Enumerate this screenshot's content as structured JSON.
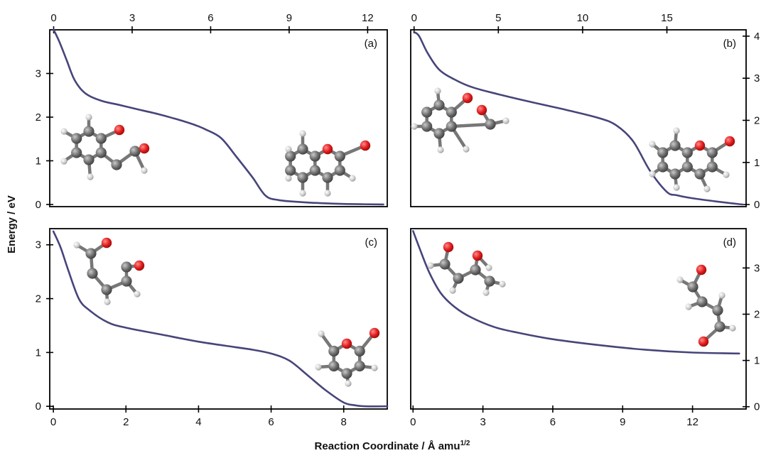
{
  "figure": {
    "ylabel": "Energy / eV",
    "xlabel_main": "Reaction Coordinate / Å amu",
    "xlabel_sup": "1/2"
  },
  "chart_data": [
    {
      "id": "a",
      "label": "(a)",
      "type": "line",
      "x_ticks": [
        0,
        3,
        6,
        9,
        12
      ],
      "x_tick_labels": [
        "0",
        "3",
        "6",
        "9",
        "12"
      ],
      "x_ticks_top": true,
      "x_ticks_bottom": false,
      "y_ticks": [
        0,
        1,
        2,
        3
      ],
      "y_tick_labels": [
        "0",
        "1",
        "2",
        "3"
      ],
      "y_axis_side": "left",
      "xlim": [
        -0.15,
        12.75
      ],
      "ylim": [
        -0.05,
        4.0
      ],
      "x": [
        0,
        0.2,
        0.5,
        0.8,
        1.2,
        1.8,
        2.5,
        3.2,
        4.0,
        4.6,
        5.0,
        5.4,
        5.8,
        6.4,
        7.0,
        7.6,
        8.1,
        8.6,
        9.3,
        10.2,
        11.2,
        12.6
      ],
      "y": [
        4.0,
        3.75,
        3.3,
        2.85,
        2.55,
        2.38,
        2.28,
        2.18,
        2.07,
        1.97,
        1.9,
        1.82,
        1.72,
        1.52,
        1.08,
        0.62,
        0.2,
        0.1,
        0.06,
        0.03,
        0.01,
        0.0
      ]
    },
    {
      "id": "b",
      "label": "(b)",
      "type": "line",
      "x_ticks": [
        0,
        5,
        10,
        15
      ],
      "x_tick_labels": [
        "0",
        "5",
        "10",
        "15"
      ],
      "x_ticks_top": true,
      "x_ticks_bottom": false,
      "y_ticks": [
        0,
        1,
        2,
        3,
        4
      ],
      "y_tick_labels": [
        "0",
        "1",
        "2",
        "3",
        "4"
      ],
      "y_axis_side": "right",
      "xlim": [
        -0.2,
        19.7
      ],
      "ylim": [
        -0.05,
        4.15
      ],
      "x": [
        0,
        0.3,
        0.8,
        1.5,
        2.5,
        3.5,
        5.0,
        7.0,
        9.0,
        11.0,
        12.0,
        13.0,
        14.0,
        15.0,
        15.6,
        16.5,
        18.0,
        19.5
      ],
      "y": [
        4.1,
        4.0,
        3.6,
        3.2,
        2.95,
        2.78,
        2.62,
        2.43,
        2.25,
        2.05,
        1.88,
        1.5,
        0.8,
        0.3,
        0.22,
        0.15,
        0.07,
        0.0
      ]
    },
    {
      "id": "c",
      "label": "(c)",
      "type": "line",
      "x_ticks": [
        0,
        2,
        4,
        6,
        8
      ],
      "x_tick_labels": [
        "0",
        "2",
        "4",
        "6",
        "8"
      ],
      "x_ticks_top": false,
      "x_ticks_bottom": true,
      "y_ticks": [
        0,
        1,
        2,
        3
      ],
      "y_tick_labels": [
        "0",
        "1",
        "2",
        "3"
      ],
      "y_axis_side": "left",
      "xlim": [
        -0.1,
        9.2
      ],
      "ylim": [
        -0.05,
        3.3
      ],
      "x": [
        0,
        0.2,
        0.4,
        0.7,
        1.0,
        1.5,
        2.0,
        3.0,
        4.0,
        5.0,
        5.5,
        6.0,
        6.5,
        7.0,
        7.5,
        8.0,
        8.3,
        8.6,
        9.2
      ],
      "y": [
        3.25,
        2.95,
        2.55,
        2.0,
        1.78,
        1.56,
        1.46,
        1.33,
        1.2,
        1.1,
        1.05,
        0.98,
        0.85,
        0.58,
        0.3,
        0.07,
        0.02,
        0.0,
        0.0
      ]
    },
    {
      "id": "d",
      "label": "(d)",
      "type": "line",
      "x_ticks": [
        0,
        3,
        6,
        9,
        12
      ],
      "x_tick_labels": [
        "0",
        "3",
        "6",
        "9",
        "12"
      ],
      "x_ticks_top": false,
      "x_ticks_bottom": true,
      "y_ticks": [
        0,
        1,
        2,
        3
      ],
      "y_tick_labels": [
        "0",
        "1",
        "2",
        "3"
      ],
      "y_axis_side": "right",
      "xlim": [
        -0.1,
        14.3
      ],
      "ylim": [
        -0.05,
        3.85
      ],
      "x": [
        0,
        0.3,
        0.7,
        1.2,
        1.8,
        2.5,
        3.5,
        4.5,
        6.0,
        8.0,
        10.0,
        12.0,
        14.0
      ],
      "y": [
        3.8,
        3.4,
        2.9,
        2.45,
        2.15,
        1.93,
        1.72,
        1.6,
        1.46,
        1.33,
        1.23,
        1.17,
        1.15
      ]
    }
  ]
}
